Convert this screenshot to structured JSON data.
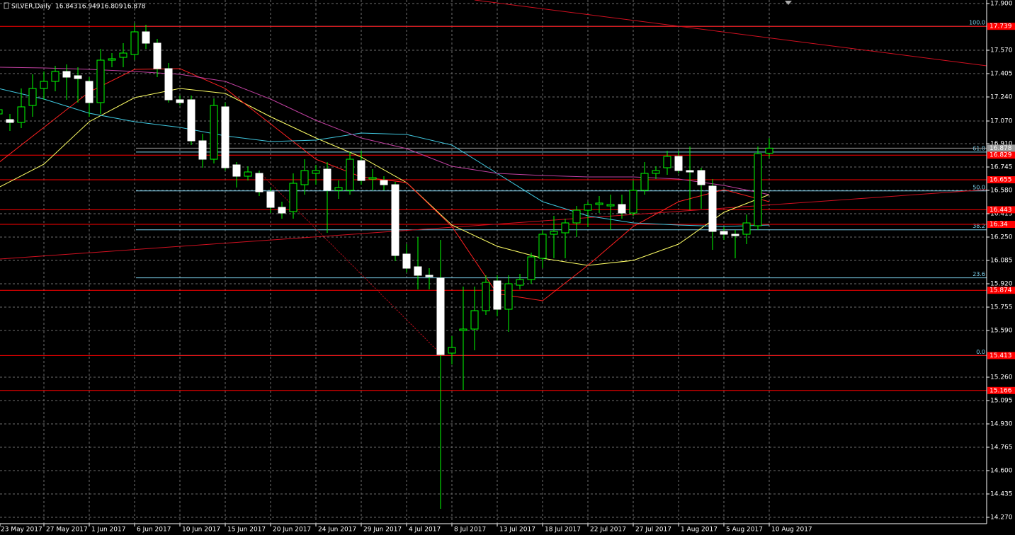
{
  "chart_data": {
    "type": "candlestick",
    "title": "SILVER,Daily",
    "categories": [
      "23 May 2017",
      null,
      null,
      null,
      "27 May 2017",
      null,
      null,
      null,
      "1 Jun 2017",
      null,
      null,
      null,
      "6 Jun 2017",
      null,
      null,
      null,
      "10 Jun 2017",
      null,
      null,
      null,
      "15 Jun 2017",
      null,
      null,
      null,
      "20 Jun 2017",
      null,
      null,
      null,
      "24 Jun 2017",
      null,
      null,
      null,
      "29 Jun 2017",
      null,
      null,
      null,
      "4 Jul 2017",
      null,
      null,
      null,
      "8 Jul 2017",
      null,
      null,
      null,
      "13 Jul 2017",
      null,
      null,
      null,
      "18 Jul 2017",
      null,
      null,
      null,
      "22 Jul 2017",
      null,
      null,
      null,
      "27 Jul 2017",
      null,
      null,
      null,
      "1 Aug 2017",
      null,
      null,
      null,
      "5 Aug 2017",
      null,
      null,
      null,
      "10 Aug 2017"
    ],
    "open": [
      17.12,
      17.08,
      17.06,
      17.18,
      17.3,
      17.35,
      17.42,
      17.39,
      17.35,
      17.2,
      17.5,
      17.52,
      17.54,
      17.7,
      17.62,
      17.44,
      17.22,
      17.22,
      16.93,
      16.8,
      17.17,
      16.76,
      16.68,
      16.7,
      16.57,
      16.46,
      16.43,
      16.62,
      16.7,
      16.73,
      16.58,
      16.58,
      16.79,
      16.66,
      16.65,
      16.62,
      16.13,
      16.04,
      15.98,
      15.96,
      15.43,
      15.59,
      15.6,
      15.73,
      15.94,
      15.74,
      15.91,
      15.95,
      16.1,
      16.27,
      16.28,
      16.35,
      16.44,
      16.48,
      16.47,
      16.48,
      16.42,
      16.58,
      16.7,
      16.74,
      16.82,
      16.72,
      16.72,
      16.61,
      16.29,
      16.27,
      16.27,
      16.33,
      16.843
    ],
    "high": [
      17.22,
      17.12,
      17.3,
      17.4,
      17.42,
      17.46,
      17.47,
      17.45,
      17.38,
      17.58,
      17.55,
      17.62,
      17.76,
      17.75,
      17.65,
      17.48,
      17.25,
      17.25,
      16.98,
      17.23,
      17.2,
      16.78,
      16.75,
      16.72,
      16.6,
      16.5,
      16.7,
      16.8,
      16.76,
      16.78,
      16.65,
      16.85,
      16.86,
      16.73,
      16.68,
      16.64,
      16.2,
      16.25,
      16.03,
      16.23,
      15.55,
      15.9,
      15.9,
      15.98,
      15.98,
      15.98,
      15.99,
      16.14,
      16.3,
      16.4,
      16.38,
      16.47,
      16.5,
      16.54,
      16.55,
      16.55,
      16.65,
      16.78,
      16.75,
      16.86,
      16.86,
      16.89,
      16.74,
      16.66,
      16.32,
      16.3,
      16.41,
      16.89,
      16.949
    ],
    "low": [
      17.05,
      17.0,
      17.02,
      17.1,
      17.22,
      17.28,
      17.22,
      17.2,
      17.1,
      17.12,
      17.45,
      17.45,
      17.5,
      17.58,
      17.38,
      17.2,
      17.18,
      16.9,
      16.74,
      16.77,
      16.72,
      16.6,
      16.65,
      16.54,
      16.42,
      16.38,
      16.38,
      16.55,
      16.62,
      16.28,
      16.52,
      16.55,
      16.62,
      16.58,
      16.58,
      16.08,
      16.0,
      15.88,
      15.88,
      14.33,
      15.35,
      15.17,
      15.45,
      15.7,
      15.69,
      15.58,
      15.88,
      15.92,
      16.03,
      16.1,
      16.1,
      16.25,
      16.32,
      16.42,
      16.3,
      16.38,
      16.4,
      16.55,
      16.66,
      16.69,
      16.7,
      16.44,
      16.45,
      16.16,
      16.23,
      16.1,
      16.2,
      16.3,
      16.809
    ],
    "close": [
      17.15,
      17.06,
      17.17,
      17.3,
      17.35,
      17.42,
      17.38,
      17.37,
      17.2,
      17.5,
      17.51,
      17.55,
      17.7,
      17.62,
      17.44,
      17.22,
      17.2,
      16.93,
      16.8,
      17.18,
      16.74,
      16.68,
      16.71,
      16.57,
      16.46,
      16.42,
      16.63,
      16.72,
      16.72,
      16.58,
      16.6,
      16.8,
      16.65,
      16.67,
      16.62,
      16.12,
      16.03,
      15.98,
      15.97,
      15.42,
      15.47,
      15.6,
      15.73,
      15.93,
      15.74,
      15.92,
      15.95,
      16.11,
      16.27,
      16.29,
      16.35,
      16.44,
      16.48,
      16.49,
      16.48,
      16.42,
      16.58,
      16.7,
      16.72,
      16.82,
      16.72,
      16.71,
      16.62,
      16.29,
      16.27,
      16.26,
      16.35,
      16.84,
      16.878
    ],
    "bull_color": "#000000",
    "bear_color": "#ffffff",
    "wick_color": "#00ff00",
    "moving_averages": [
      {
        "color": "#ffff66",
        "x": [
          0,
          4,
          8,
          12,
          16,
          20,
          24,
          28,
          32,
          36,
          40,
          44,
          48,
          52,
          56,
          60,
          64,
          68
        ],
        "values": [
          16.6,
          16.765,
          17.065,
          17.235,
          17.3,
          17.265,
          17.1,
          16.95,
          16.815,
          16.635,
          16.335,
          16.185,
          16.1,
          16.05,
          16.085,
          16.2,
          16.425,
          16.55
        ]
      },
      {
        "color": "#ff2020",
        "x": [
          0,
          4,
          8,
          12,
          16,
          20,
          24,
          28,
          32,
          36,
          40,
          44,
          48,
          52,
          56,
          60,
          64,
          68
        ],
        "values": [
          16.775,
          17.025,
          17.275,
          17.435,
          17.44,
          17.3,
          17.05,
          16.8,
          16.675,
          16.635,
          16.325,
          15.85,
          15.8,
          16.05,
          16.325,
          16.5,
          16.585,
          16.5
        ]
      },
      {
        "color": "#40c8e0",
        "x": [
          0,
          4,
          8,
          12,
          16,
          20,
          24,
          28,
          32,
          36,
          40,
          44,
          48,
          52,
          56,
          60,
          64,
          68
        ],
        "values": [
          17.3,
          17.225,
          17.125,
          17.065,
          17.025,
          16.965,
          16.925,
          16.935,
          16.985,
          16.975,
          16.9,
          16.7,
          16.5,
          16.4,
          16.35,
          16.335,
          16.325,
          16.335
        ]
      },
      {
        "color": "#c040a0",
        "x": [
          0,
          4,
          8,
          12,
          16,
          20,
          24,
          28,
          32,
          36,
          40,
          44,
          48,
          52,
          56,
          60,
          64,
          68
        ],
        "values": [
          17.45,
          17.445,
          17.435,
          17.42,
          17.4,
          17.35,
          17.225,
          17.075,
          16.95,
          16.875,
          16.75,
          16.7,
          16.685,
          16.675,
          16.675,
          16.66,
          16.615,
          16.55
        ]
      }
    ],
    "levels": [
      17.739,
      16.829,
      16.655,
      16.443,
      16.34,
      15.874,
      15.413,
      15.166
    ],
    "level_color": "#ff0000",
    "fibonacci": {
      "low": 15.413,
      "high": 17.739,
      "color": "#7fd4f0",
      "levels": [
        {
          "value": 100,
          "label": "100.0"
        },
        {
          "value": 61.8,
          "label": "61.8"
        },
        {
          "value": 50,
          "label": "50.0"
        },
        {
          "value": 38.2,
          "label": "38.2"
        },
        {
          "value": 23.6,
          "label": "23.6"
        },
        {
          "value": 0,
          "label": "0.0"
        }
      ]
    },
    "ylim": [
      14.225,
      17.925
    ],
    "yticks": [
      {
        "value": 17.9,
        "label": "17.900"
      },
      {
        "value": 17.57,
        "label": "17.570"
      },
      {
        "value": 17.405,
        "label": "17.405"
      },
      {
        "value": 17.24,
        "label": "17.240"
      },
      {
        "value": 17.07,
        "label": "17.070"
      },
      {
        "value": 16.91,
        "label": "16.910"
      },
      {
        "value": 16.745,
        "label": "16.745"
      },
      {
        "value": 16.58,
        "label": "16.580"
      },
      {
        "value": 16.415,
        "label": "16.415"
      },
      {
        "value": 16.25,
        "label": "16.250"
      },
      {
        "value": 16.085,
        "label": "16.085"
      },
      {
        "value": 15.92,
        "label": "15.920"
      },
      {
        "value": 15.755,
        "label": "15.755"
      },
      {
        "value": 15.59,
        "label": "15.590"
      },
      {
        "value": 15.26,
        "label": "15.260"
      },
      {
        "value": 15.095,
        "label": "15.095"
      },
      {
        "value": 14.93,
        "label": "14.930"
      },
      {
        "value": 14.765,
        "label": "14.765"
      },
      {
        "value": 14.6,
        "label": "14.600"
      },
      {
        "value": 14.435,
        "label": "14.435"
      },
      {
        "value": 14.27,
        "label": "14.270"
      }
    ],
    "grid": true
  }
}
